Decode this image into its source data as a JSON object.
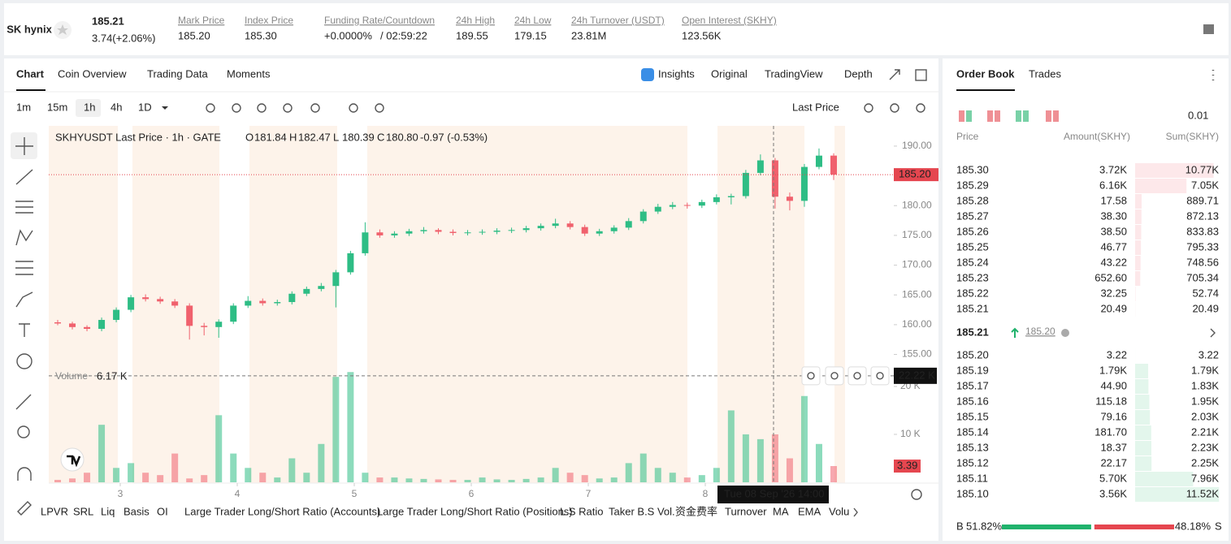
{
  "header": {
    "logo": "SK hynix",
    "price": "185.21",
    "change": "3.74(+2.06%)",
    "stats": [
      {
        "label": "Mark Price",
        "value": "185.20"
      },
      {
        "label": "Index Price",
        "value": "185.30"
      },
      {
        "label": "Funding Rate/Countdown",
        "value": "+0.0000%",
        "extra": "/ 02:59:22"
      },
      {
        "label": "24h High",
        "value": "189.55"
      },
      {
        "label": "24h Low",
        "value": "179.15"
      },
      {
        "label": "24h Turnover (USDT)",
        "value": "23.81M"
      },
      {
        "label": "Open Interest (SKHY)",
        "value": "123.56K"
      }
    ]
  },
  "tabs": {
    "left": [
      "Chart",
      "Coin Overview",
      "Trading Data",
      "Moments"
    ],
    "right": [
      "Insights",
      "Original",
      "TradingView",
      "Depth"
    ]
  },
  "toolbar": {
    "intervals": [
      "1m",
      "15m",
      "1h",
      "4h",
      "1D"
    ],
    "price_type": "Last Price"
  },
  "chart_data": {
    "type": "candlestick",
    "title": "SKHYUSDT Last Price · 1h · GATE",
    "legend": [
      {
        "key": "O",
        "value": "181.84"
      },
      {
        "key": "H",
        "value": "182.47"
      },
      {
        "key": "L",
        "value": "180.39"
      },
      {
        "key": "C",
        "value": "180.80"
      }
    ],
    "legend_change": "-0.97 (-0.53%)",
    "up_color": "#2ebd85",
    "down_color": "#f0616d",
    "ohlc": [
      [
        160.4,
        160.8,
        159.9,
        160.2
      ],
      [
        160.2,
        160.5,
        159.2,
        159.6
      ],
      [
        159.6,
        159.9,
        158.9,
        159.3
      ],
      [
        159.3,
        161.2,
        158.9,
        160.8
      ],
      [
        160.8,
        162.9,
        160.4,
        162.5
      ],
      [
        162.5,
        165,
        162.1,
        164.6
      ],
      [
        164.6,
        165.1,
        163.9,
        164.3
      ],
      [
        164.3,
        164.7,
        163.5,
        163.9
      ],
      [
        163.9,
        164.3,
        162.8,
        163.2
      ],
      [
        163.2,
        163.6,
        157.5,
        159.8
      ],
      [
        159.8,
        160.3,
        158.2,
        159.6
      ],
      [
        159.6,
        160.9,
        157.8,
        160.5
      ],
      [
        160.5,
        163.6,
        160.1,
        163.2
      ],
      [
        163.2,
        164.8,
        162.8,
        164
      ],
      [
        164,
        164.4,
        163.2,
        163.6
      ],
      [
        163.6,
        164.2,
        163.2,
        163.8
      ],
      [
        163.8,
        165.6,
        163.4,
        165.2
      ],
      [
        165.2,
        166.4,
        164.8,
        166
      ],
      [
        166,
        167,
        165.6,
        166.5
      ],
      [
        166.5,
        169.2,
        162.9,
        168.8
      ],
      [
        168.8,
        172.4,
        168.4,
        172
      ],
      [
        172,
        177.2,
        171.6,
        175.5
      ],
      [
        175.5,
        176,
        174.6,
        175
      ],
      [
        175,
        175.7,
        174.6,
        175.3
      ],
      [
        175.3,
        176.1,
        174.9,
        175.7
      ],
      [
        175.7,
        176.4,
        175.3,
        175.9
      ],
      [
        175.9,
        176.2,
        175.2,
        175.6
      ],
      [
        175.6,
        176,
        175,
        175.4
      ],
      [
        175.4,
        175.9,
        175,
        175.5
      ],
      [
        175.5,
        176,
        175.1,
        175.6
      ],
      [
        175.6,
        176.2,
        175.2,
        175.8
      ],
      [
        175.8,
        176.3,
        175.4,
        175.9
      ],
      [
        175.9,
        176.6,
        175.5,
        176.2
      ],
      [
        176.2,
        177,
        175.8,
        176.6
      ],
      [
        176.6,
        177.8,
        176.2,
        177
      ],
      [
        177,
        177.4,
        176,
        176.4
      ],
      [
        176.4,
        176.8,
        174.9,
        175.3
      ],
      [
        175.3,
        176.1,
        174.9,
        175.7
      ],
      [
        175.7,
        176.7,
        175.3,
        176.3
      ],
      [
        176.3,
        177.9,
        175.9,
        177.4
      ],
      [
        177.4,
        179.4,
        177,
        179
      ],
      [
        179,
        180.3,
        178.6,
        179.8
      ],
      [
        179.8,
        180.6,
        179.4,
        180.1
      ],
      [
        180.1,
        180.5,
        179.5,
        180
      ],
      [
        180,
        181,
        179.6,
        180.6
      ],
      [
        180.6,
        181.9,
        180.2,
        181.4
      ],
      [
        181.4,
        182,
        180.2,
        181.6
      ],
      [
        181.6,
        186,
        181.2,
        185.5
      ],
      [
        185.5,
        188.6,
        185.1,
        187.6
      ],
      [
        187.6,
        188,
        179.5,
        181.5
      ],
      [
        181.5,
        182.2,
        179.2,
        180.8
      ],
      [
        180.8,
        187,
        179.8,
        186.5
      ],
      [
        186.5,
        189.6,
        186.1,
        188.4
      ],
      [
        188.4,
        188.8,
        184.3,
        185.2
      ]
    ],
    "ylim": [
      151.8,
      193.4
    ],
    "yticks": [
      {
        "value": 155,
        "label": "155.00"
      },
      {
        "value": 160,
        "label": "160.00"
      },
      {
        "value": 165,
        "label": "165.00"
      },
      {
        "value": 170,
        "label": "170.00"
      },
      {
        "value": 175,
        "label": "175.00"
      },
      {
        "value": 180,
        "label": "180.00"
      },
      {
        "value": 185,
        "label": "185.00"
      },
      {
        "value": 190,
        "label": "190.00"
      }
    ],
    "xlim": [
      2.389,
      9.611
    ],
    "xticks": [
      3,
      4,
      5,
      6,
      7,
      8
    ],
    "last_price": {
      "value": 185.2,
      "label": "185.20"
    },
    "crosshair_time": "Tue 08 Sep '26  14:00",
    "volume": {
      "title": "Volume",
      "current": "6.17 K",
      "ylim": [
        0,
        22.7
      ],
      "yticks": [
        {
          "value": 10,
          "label": "10 K"
        },
        {
          "value": 20,
          "label": "20 K"
        }
      ],
      "values": [
        0.5,
        0.8,
        2,
        12,
        3,
        4,
        2,
        1.5,
        6,
        0.8,
        1.5,
        14,
        6,
        3,
        2,
        1,
        5,
        2,
        8,
        22,
        23,
        2,
        1,
        1,
        0.8,
        0.7,
        0.6,
        0.5,
        0.5,
        1,
        0.6,
        0.5,
        0.7,
        1,
        3,
        2,
        1.5,
        0.8,
        1,
        4,
        6,
        3,
        2,
        1,
        1.5,
        3,
        15,
        10,
        9,
        10,
        5,
        18,
        8,
        3.39
      ],
      "crosshair": {
        "value": 22.22,
        "label": "22.22 K"
      },
      "last": 3.39
    }
  },
  "indicators": [
    "LPVR",
    "SRL",
    "Liq",
    "Basis",
    "OI",
    "Large Trader Long/Short Ratio (Accounts)",
    "Large Trader Long/Short Ratio (Positions)",
    "L.S Ratio",
    "Taker B.S Vol.",
    "资金费率",
    "Turnover",
    "MA",
    "EMA",
    "Volu"
  ],
  "order_book": {
    "tabs": [
      "Order Book",
      "Trades"
    ],
    "precision": "0.01",
    "columns": [
      "Price",
      "Amount(SKHY)",
      "Sum(SKHY)"
    ],
    "asks": [
      {
        "price": "185.30",
        "amount": "3.72K",
        "sum": {
          "value": 10770,
          "label": "10.77K"
        }
      },
      {
        "price": "185.29",
        "amount": "6.16K",
        "sum": {
          "value": 7050,
          "label": "7.05K"
        }
      },
      {
        "price": "185.28",
        "amount": "17.58",
        "sum": 889.71
      },
      {
        "price": "185.27",
        "amount": "38.30",
        "sum": 872.13
      },
      {
        "price": "185.26",
        "amount": "38.50",
        "sum": 833.83
      },
      {
        "price": "185.25",
        "amount": "46.77",
        "sum": 795.33
      },
      {
        "price": "185.24",
        "amount": "43.22",
        "sum": 748.56
      },
      {
        "price": "185.23",
        "amount": "652.60",
        "sum": 705.34
      },
      {
        "price": "185.22",
        "amount": "32.25",
        "sum": 52.74
      },
      {
        "price": "185.21",
        "amount": "20.49",
        "sum": 20.49
      }
    ],
    "last": "185.21",
    "mark": "185.20",
    "bids": [
      {
        "price": "185.20",
        "amount": "3.22",
        "sum": 3.22
      },
      {
        "price": "185.19",
        "amount": "1.79K",
        "sum": {
          "value": 1790,
          "label": "1.79K"
        }
      },
      {
        "price": "185.17",
        "amount": "44.90",
        "sum": {
          "value": 1830,
          "label": "1.83K"
        }
      },
      {
        "price": "185.16",
        "amount": "115.18",
        "sum": {
          "value": 1950,
          "label": "1.95K"
        }
      },
      {
        "price": "185.15",
        "amount": "79.16",
        "sum": {
          "value": 2030,
          "label": "2.03K"
        }
      },
      {
        "price": "185.14",
        "amount": "181.70",
        "sum": {
          "value": 2210,
          "label": "2.21K"
        }
      },
      {
        "price": "185.13",
        "amount": "18.37",
        "sum": {
          "value": 2230,
          "label": "2.23K"
        }
      },
      {
        "price": "185.12",
        "amount": "22.17",
        "sum": {
          "value": 2250,
          "label": "2.25K"
        }
      },
      {
        "price": "185.11",
        "amount": "5.70K",
        "sum": {
          "value": 7960,
          "label": "7.96K"
        }
      },
      {
        "price": "185.10",
        "amount": "3.56K",
        "sum": {
          "value": 11520,
          "label": "11.52K"
        }
      }
    ],
    "buy_key": "B",
    "buy": {
      "value": 51.82,
      "label": "51.82%"
    },
    "sell": {
      "value": 48.18,
      "label": "48.18%"
    },
    "sell_key": "S"
  }
}
